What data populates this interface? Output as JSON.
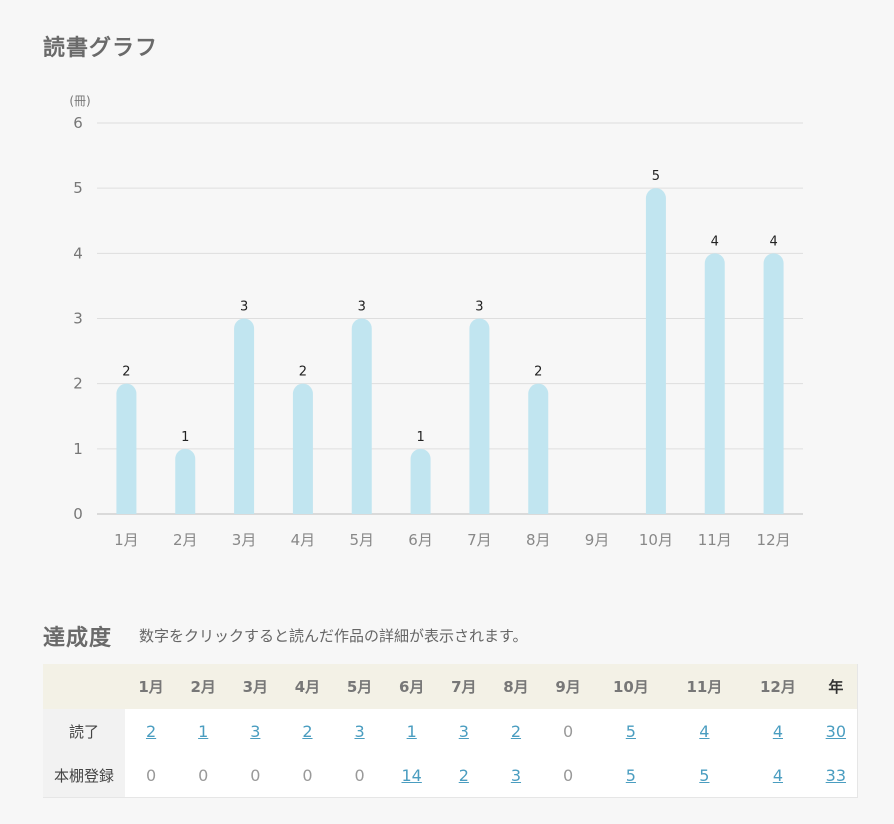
{
  "page": {
    "graph_title": "読書グラフ",
    "achievement_title": "達成度",
    "achievement_note": "数字をクリックすると読んだ作品の詳細が表示されます。"
  },
  "chart_data": {
    "type": "bar",
    "ylabel": "(冊)",
    "ylim": [
      0,
      6
    ],
    "yticks": [
      0,
      1,
      2,
      3,
      4,
      5,
      6
    ],
    "grid": true,
    "categories": [
      "1月",
      "2月",
      "3月",
      "4月",
      "5月",
      "6月",
      "7月",
      "8月",
      "9月",
      "10月",
      "11月",
      "12月"
    ],
    "values": [
      2,
      1,
      3,
      2,
      3,
      1,
      3,
      2,
      0,
      5,
      4,
      4
    ],
    "bar_color": "#c1e5f0"
  },
  "table": {
    "headers": [
      "",
      "1月",
      "2月",
      "3月",
      "4月",
      "5月",
      "6月",
      "7月",
      "8月",
      "9月",
      "10月",
      "11月",
      "12月",
      "年"
    ],
    "rows": [
      {
        "label": "読了",
        "values": [
          "2",
          "1",
          "3",
          "2",
          "3",
          "1",
          "3",
          "2",
          "0",
          "5",
          "4",
          "4",
          "30"
        ]
      },
      {
        "label": "本棚登録",
        "values": [
          "0",
          "0",
          "0",
          "0",
          "0",
          "14",
          "2",
          "3",
          "0",
          "5",
          "5",
          "4",
          "33"
        ]
      }
    ],
    "link_color": "#4a9dc0"
  }
}
